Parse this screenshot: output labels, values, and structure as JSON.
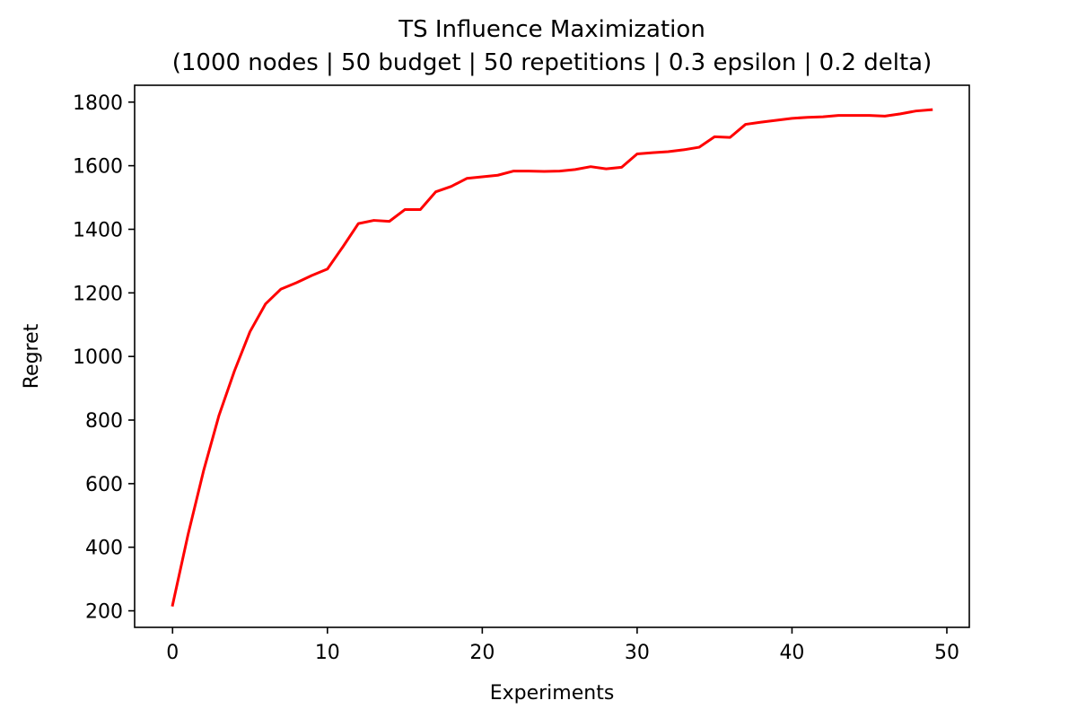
{
  "chart_data": {
    "type": "line",
    "title": "TS Influence Maximization",
    "subtitle": "(1000 nodes | 50 budget | 50 repetitions | 0.3 epsilon | 0.2 delta)",
    "xlabel": "Experiments",
    "ylabel": "Regret",
    "xlim": [
      -2.45,
      51.45
    ],
    "ylim": [
      148,
      1853
    ],
    "xticks": [
      0,
      10,
      20,
      30,
      40,
      50
    ],
    "yticks": [
      200,
      400,
      600,
      800,
      1000,
      1200,
      1400,
      1600,
      1800
    ],
    "grid": false,
    "line_color": "#ff0000",
    "series": [
      {
        "x": [
          0,
          1,
          2,
          3,
          4,
          5,
          6,
          7,
          8,
          9,
          10,
          11,
          12,
          13,
          14,
          15,
          16,
          17,
          18,
          19,
          20,
          21,
          22,
          23,
          24,
          25,
          26,
          27,
          28,
          29,
          30,
          31,
          32,
          33,
          34,
          35,
          36,
          37,
          38,
          39,
          40,
          41,
          42,
          43,
          44,
          45,
          46,
          47,
          48,
          49
        ],
        "y": [
          218,
          440,
          640,
          815,
          955,
          1078,
          1165,
          1212,
          1232,
          1255,
          1275,
          1345,
          1418,
          1428,
          1425,
          1462,
          1462,
          1518,
          1535,
          1560,
          1565,
          1570,
          1583,
          1583,
          1582,
          1583,
          1588,
          1597,
          1590,
          1595,
          1637,
          1641,
          1644,
          1650,
          1658,
          1691,
          1689,
          1730,
          1737,
          1743,
          1749,
          1752,
          1754,
          1758,
          1758,
          1758,
          1756,
          1763,
          1772,
          1776
        ]
      }
    ]
  }
}
